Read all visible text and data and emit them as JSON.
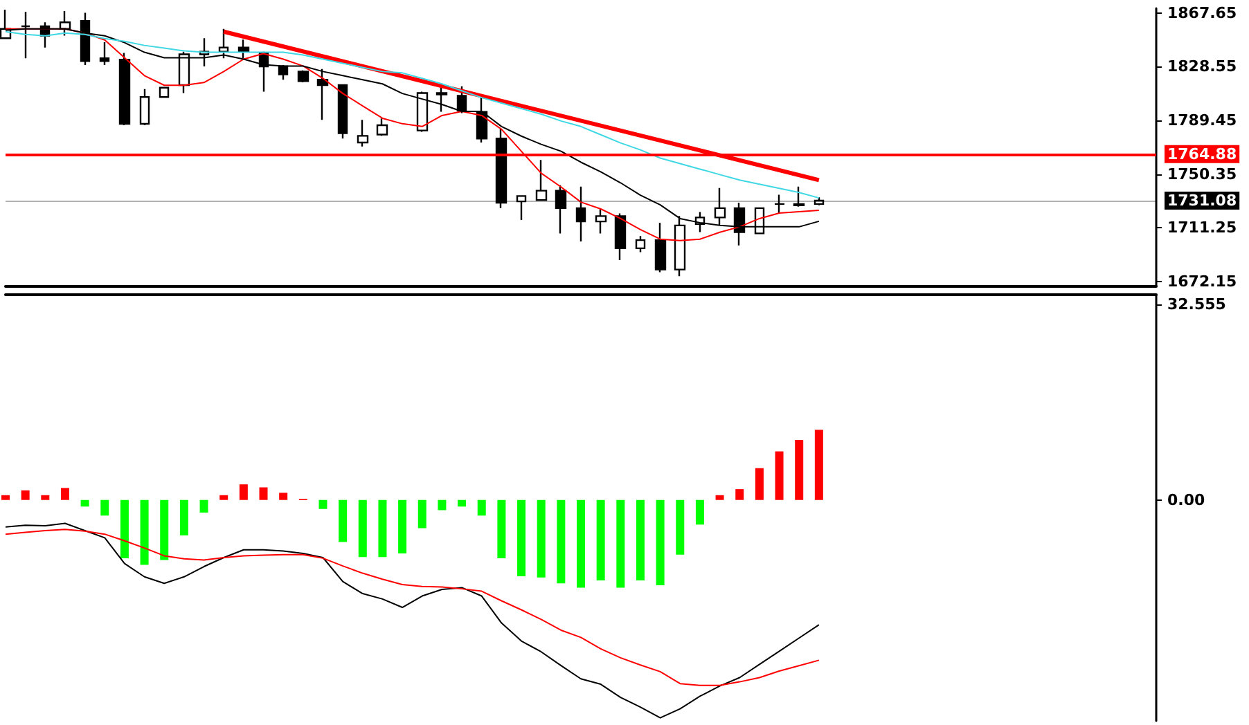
{
  "chart_data": [
    {
      "type": "candlestick",
      "categories": [
        null,
        null,
        null,
        null,
        null,
        null,
        null,
        null,
        null,
        null,
        null,
        null,
        null,
        null,
        null,
        null,
        null,
        null,
        null,
        null,
        null,
        null,
        null,
        null,
        null,
        null,
        null,
        null,
        null,
        null,
        null,
        null,
        null,
        null,
        null,
        null,
        null,
        null,
        null,
        null,
        null,
        null
      ],
      "series": [
        {
          "color": "#000000",
          "ohlc": [
            [
              1849.2,
              1870,
              1849.2,
              1856.0
            ],
            [
              1857.9,
              1868.5,
              1834.6,
              1857.9
            ],
            [
              1857.9,
              1860.8,
              1842.4,
              1851.1
            ],
            [
              1856.0,
              1869,
              1851.1,
              1860.8
            ],
            [
              1861.8,
              1867.7,
              1829.7,
              1832.6
            ],
            [
              1834.6,
              1846.3,
              1829.7,
              1832.6
            ],
            [
              1833.6,
              1838.5,
              1785.9,
              1786.9
            ],
            [
              1786.9,
              1812.2,
              1785.9,
              1806.4
            ],
            [
              1806.4,
              1813.2,
              1806.4,
              1813.2
            ],
            [
              1815.1,
              1839.4,
              1809.3,
              1837.5
            ],
            [
              1837.5,
              1849.2,
              1828.7,
              1839.4
            ],
            [
              1839.4,
              1856.0,
              1834.6,
              1842.4
            ],
            [
              1842.4,
              1848.2,
              1834.6,
              1839.4
            ],
            [
              1838.5,
              1839.4,
              1810.3,
              1828.7
            ],
            [
              1828.7,
              1829.7,
              1819.0,
              1822.9
            ],
            [
              1824.9,
              1825.8,
              1817.1,
              1818.0
            ],
            [
              1819.0,
              1826.8,
              1789.8,
              1815.1
            ],
            [
              1815.1,
              1815.1,
              1776.2,
              1780.1
            ],
            [
              1773.3,
              1789.8,
              1770.4,
              1778.2
            ],
            [
              1779.1,
              1790.8,
              1778.2,
              1785.9
            ],
            null,
            [
              1782.1,
              1810.3,
              1781.1,
              1809.3
            ],
            [
              1809.3,
              1814.2,
              1795.7,
              1808.3
            ],
            [
              1807.4,
              1814.2,
              1794.7,
              1796.6
            ],
            [
              1795.7,
              1807.4,
              1773.3,
              1776.2
            ],
            [
              1776.2,
              1783.0,
              1725.6,
              1729.5
            ],
            [
              1730.5,
              1734.4,
              1716.9,
              1734.4
            ],
            [
              1731.5,
              1760.6,
              1731.5,
              1738.3
            ],
            [
              1738.3,
              1742.2,
              1707.2,
              1725.6
            ],
            [
              1725.6,
              1741.2,
              1701.3,
              1715.9
            ],
            [
              1715.9,
              1724.7,
              1707.2,
              1719.8
            ],
            [
              1719.8,
              1721.7,
              1687.7,
              1696.4
            ],
            [
              1696.4,
              1705.2,
              1693.5,
              1702.3
            ],
            [
              1702.3,
              1714.9,
              1678.9,
              1680.9
            ],
            [
              1680.9,
              1719.8,
              1676.0,
              1713.0
            ],
            [
              1714.0,
              1722.7,
              1708.1,
              1718.8
            ],
            [
              1718.8,
              1740.2,
              1713.0,
              1725.6
            ],
            [
              1725.6,
              1729.5,
              1698.4,
              1708.1
            ],
            [
              1707.2,
              1725.6,
              1707.2,
              1725.6
            ],
            [
              1728.6,
              1735.3,
              1721.7,
              1728.6
            ],
            [
              1728.6,
              1741.2,
              1726.6,
              1727.6
            ],
            [
              1728.6,
              1733.4,
              1727.6,
              1731.08
            ]
          ]
        },
        {
          "type": "line",
          "color": "#ff0000",
          "values": [
            1856,
            1856,
            1856,
            1856,
            1853,
            1848,
            1835,
            1822,
            1815,
            1815,
            1817,
            1825,
            1834,
            1838,
            1834,
            1829,
            1820,
            1809,
            1800,
            1791,
            1787,
            1785,
            1793,
            1796,
            1793,
            1783,
            1767,
            1751,
            1741,
            1730,
            1725,
            1718,
            1710,
            1703,
            1702,
            1703,
            1708,
            1712,
            1718,
            1722,
            1723,
            1724
          ]
        },
        {
          "type": "line",
          "color": "#000000",
          "values": [
            1855,
            1856,
            1856,
            1856,
            1853,
            1851,
            1846,
            1839,
            1835,
            1835,
            1835,
            1837,
            1834,
            1830,
            1829,
            1829,
            1825,
            1822,
            1819,
            1816,
            1809,
            1805,
            1801,
            1796,
            1796,
            1785,
            1778,
            1772,
            1767,
            1759,
            1752,
            1744,
            1735,
            1728,
            1718,
            1715,
            1713,
            1712,
            1712,
            1712,
            1712,
            1716
          ]
        },
        {
          "type": "line",
          "color": "#3fd8e4",
          "values": [
            1854,
            1852,
            1851,
            1853,
            1852,
            1849,
            1847,
            1844,
            1842,
            1840,
            1839,
            1839,
            1839,
            1839,
            1839,
            1837,
            1834,
            1831,
            1828,
            1825,
            1824,
            1820,
            1816,
            1811,
            1806,
            1802,
            1798,
            1794,
            1789,
            1785,
            1779,
            1773,
            1768,
            1762,
            1758,
            1754,
            1750,
            1746,
            1743,
            1740,
            1737,
            1733
          ]
        },
        {
          "type": "line",
          "color": "#ff0000",
          "values": [
            null,
            null,
            null,
            null,
            null,
            null,
            null,
            null,
            null,
            null,
            null,
            1854,
            null,
            null,
            null,
            null,
            null,
            null,
            null,
            null,
            null,
            null,
            null,
            null,
            null,
            null,
            null,
            null,
            null,
            null,
            null,
            null,
            null,
            null,
            null,
            null,
            null,
            null,
            null,
            null,
            null,
            1746
          ]
        }
      ],
      "ylim": [
        1669,
        1871
      ],
      "yticks": [
        1672.15,
        1711.25,
        1750.35,
        1789.45,
        1828.55,
        1867.65
      ],
      "ref_lines": [
        {
          "axis": "y",
          "value": 1764.88,
          "label": "1764.88",
          "color": "#ff0000"
        },
        {
          "axis": "y",
          "value": 1731.08,
          "label": "1731.08",
          "color": "#000000"
        }
      ],
      "tick_labels": "y",
      "grid": false,
      "marker": "none"
    },
    {
      "type": "bar",
      "categories": [
        null,
        null,
        null,
        null,
        null,
        null,
        null,
        null,
        null,
        null,
        null,
        null,
        null,
        null,
        null,
        null,
        null,
        null,
        null,
        null,
        null,
        null,
        null,
        null,
        null,
        null,
        null,
        null,
        null,
        null,
        null,
        null,
        null,
        null,
        null,
        null,
        null,
        null,
        null,
        null,
        null,
        null
      ],
      "series": [
        {
          "values": [
            0.8,
            1.6,
            0.8,
            2.0,
            -1.1,
            -2.6,
            -9.7,
            -10.8,
            -10.0,
            -5.9,
            -2.1,
            0.8,
            2.6,
            2.1,
            1.2,
            0.2,
            -1.5,
            -7.0,
            -9.5,
            -9.5,
            -8.9,
            -4.7,
            -1.7,
            -1.1,
            -2.6,
            -9.7,
            -12.7,
            -12.9,
            -13.9,
            -14.6,
            -13.4,
            -14.6,
            -13.4,
            -14.2,
            -9.1,
            -4.1,
            0.8,
            1.8,
            5.3,
            8.1,
            10.0,
            11.7
          ],
          "colors": [
            "#ff0000",
            "#ff0000",
            "#ff0000",
            "#ff0000",
            "#00ff00",
            "#00ff00",
            "#00ff00",
            "#00ff00",
            "#00ff00",
            "#00ff00",
            "#00ff00",
            "#ff0000",
            "#ff0000",
            "#ff0000",
            "#ff0000",
            "#ff0000",
            "#00ff00",
            "#00ff00",
            "#00ff00",
            "#00ff00",
            "#00ff00",
            "#00ff00",
            "#00ff00",
            "#00ff00",
            "#00ff00",
            "#00ff00",
            "#00ff00",
            "#00ff00",
            "#00ff00",
            "#00ff00",
            "#00ff00",
            "#00ff00",
            "#00ff00",
            "#00ff00",
            "#00ff00",
            "#00ff00",
            "#ff0000",
            "#ff0000",
            "#ff0000",
            "#ff0000",
            "#ff0000",
            "#ff0000"
          ]
        },
        {
          "type": "line",
          "color": "#000000",
          "values": [
            -4.5,
            -4.2,
            -4.3,
            -3.9,
            -5.1,
            -6.3,
            -10.6,
            -12.8,
            -13.9,
            -12.8,
            -11.1,
            -9.6,
            -8.3,
            -8.3,
            -8.5,
            -8.9,
            -9.6,
            -13.6,
            -15.6,
            -16.5,
            -17.9,
            -16.0,
            -14.9,
            -14.6,
            -16.0,
            -20.5,
            -23.5,
            -25.3,
            -27.6,
            -29.8,
            -30.7,
            -32.9,
            -34.5,
            -36.3,
            -34.8,
            -32.7,
            -31.0,
            -29.6,
            -27.4,
            -25.2,
            -23.0,
            -20.8
          ]
        },
        {
          "type": "line",
          "color": "#ff0000",
          "values": [
            -5.7,
            -5.4,
            -5.1,
            -4.9,
            -5.2,
            -5.7,
            -6.8,
            -8.0,
            -9.3,
            -9.8,
            -10.0,
            -9.6,
            -9.3,
            -9.2,
            -9.1,
            -9.1,
            -9.7,
            -11.0,
            -12.2,
            -13.2,
            -14.1,
            -14.4,
            -14.5,
            -14.8,
            -15.2,
            -16.8,
            -18.3,
            -19.9,
            -21.7,
            -22.9,
            -24.8,
            -26.3,
            -27.5,
            -28.6,
            -30.6,
            -30.9,
            -30.9,
            -30.3,
            -29.6,
            -28.5,
            -27.6,
            -26.7
          ]
        }
      ],
      "ylim": [
        -36.8,
        34.2
      ],
      "yticks": [
        {
          "value": 0,
          "label": "0.00"
        },
        32.555
      ],
      "tick_labels": "y",
      "grid": false,
      "marker": "none"
    }
  ]
}
